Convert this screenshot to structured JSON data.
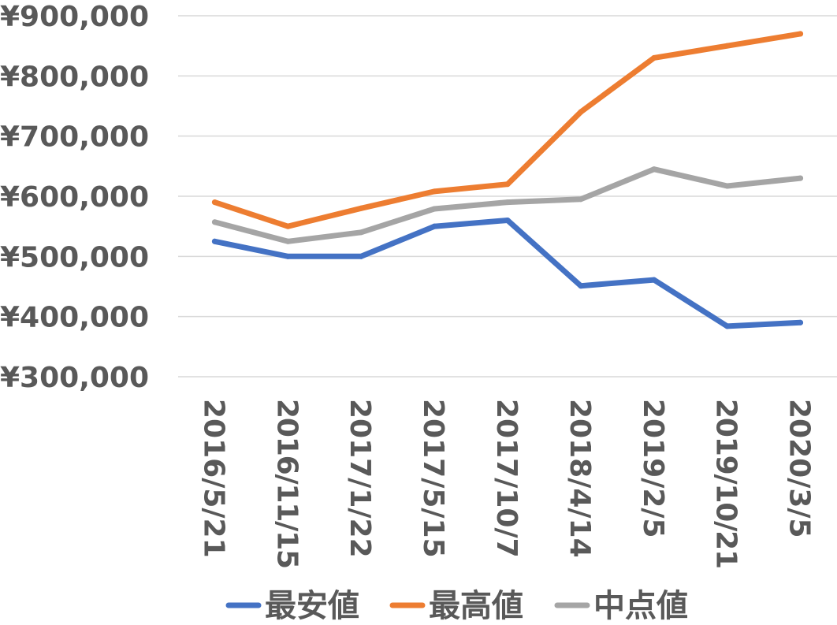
{
  "chart_data": {
    "type": "line",
    "categories": [
      "2016/5/21",
      "2016/11/15",
      "2017/1/22",
      "2017/5/15",
      "2017/10/7",
      "2018/4/14",
      "2019/2/5",
      "2019/10/21",
      "2020/3/5"
    ],
    "series": [
      {
        "name": "最安値",
        "color": "#4472C4",
        "values": [
          525000,
          500000,
          500000,
          550000,
          560000,
          451000,
          461000,
          384000,
          390000
        ]
      },
      {
        "name": "最高値",
        "color": "#ED7D31",
        "values": [
          590000,
          550000,
          580000,
          608000,
          620000,
          740000,
          830000,
          850000,
          870000
        ]
      },
      {
        "name": "中点値",
        "color": "#A5A5A5",
        "values": [
          557000,
          525000,
          540000,
          579000,
          590000,
          595000,
          645000,
          617000,
          630000
        ]
      }
    ],
    "yticks": [
      "¥300,000",
      "¥400,000",
      "¥500,000",
      "¥600,000",
      "¥700,000",
      "¥800,000",
      "¥900,000"
    ],
    "ylim": [
      300000,
      900000
    ],
    "grid": true,
    "legend": "bottom"
  }
}
